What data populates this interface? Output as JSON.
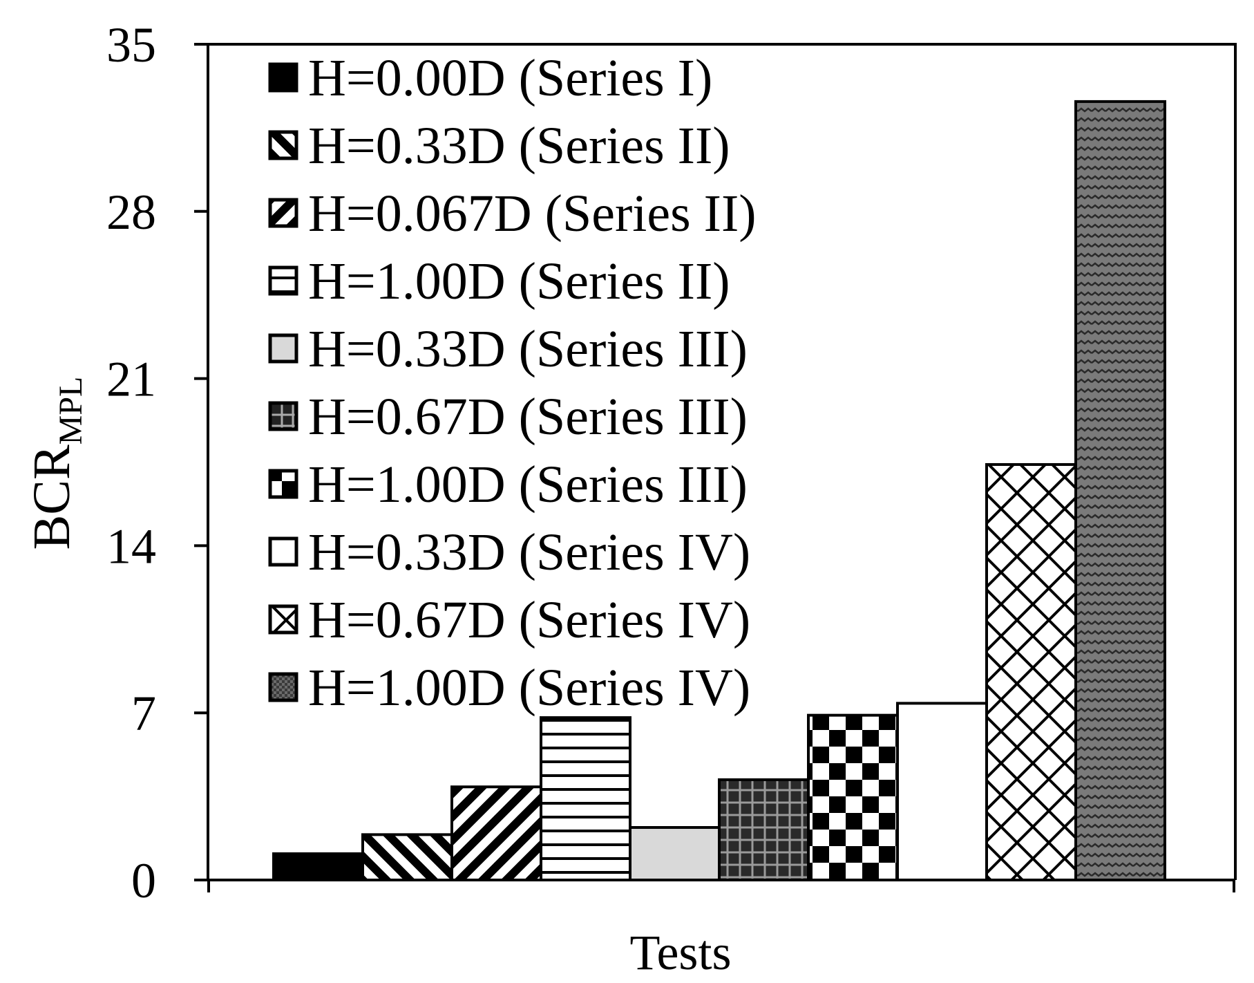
{
  "chart_data": {
    "type": "bar",
    "title": "",
    "xlabel": "Tests",
    "ylabel": {
      "main": "BCR",
      "sub": "MPL"
    },
    "ylim": [
      0,
      35
    ],
    "yticks": [
      0,
      7,
      14,
      21,
      28,
      35
    ],
    "grid": false,
    "legend_position": "top-left",
    "series": [
      {
        "name": "H=0.00D (Series I)",
        "value": 1.1,
        "pattern": "solid-black"
      },
      {
        "name": "H=0.33D (Series II)",
        "value": 1.9,
        "pattern": "wide-diag-down"
      },
      {
        "name": "H=0.067D (Series II)",
        "value": 3.9,
        "pattern": "wide-diag-up"
      },
      {
        "name": "H=1.00D (Series II)",
        "value": 6.8,
        "pattern": "horizontal-lines"
      },
      {
        "name": "H=0.33D (Series III)",
        "value": 2.2,
        "pattern": "light-gray"
      },
      {
        "name": "H=0.67D (Series III)",
        "value": 4.2,
        "pattern": "dark-grid"
      },
      {
        "name": "H=1.00D (Series III)",
        "value": 6.9,
        "pattern": "checkerboard"
      },
      {
        "name": "H=0.33D (Series IV)",
        "value": 7.4,
        "pattern": "white"
      },
      {
        "name": "H=0.67D (Series IV)",
        "value": 17.4,
        "pattern": "diamond-trellis"
      },
      {
        "name": "H=1.00D (Series IV)",
        "value": 32.6,
        "pattern": "gray-wave"
      }
    ]
  }
}
